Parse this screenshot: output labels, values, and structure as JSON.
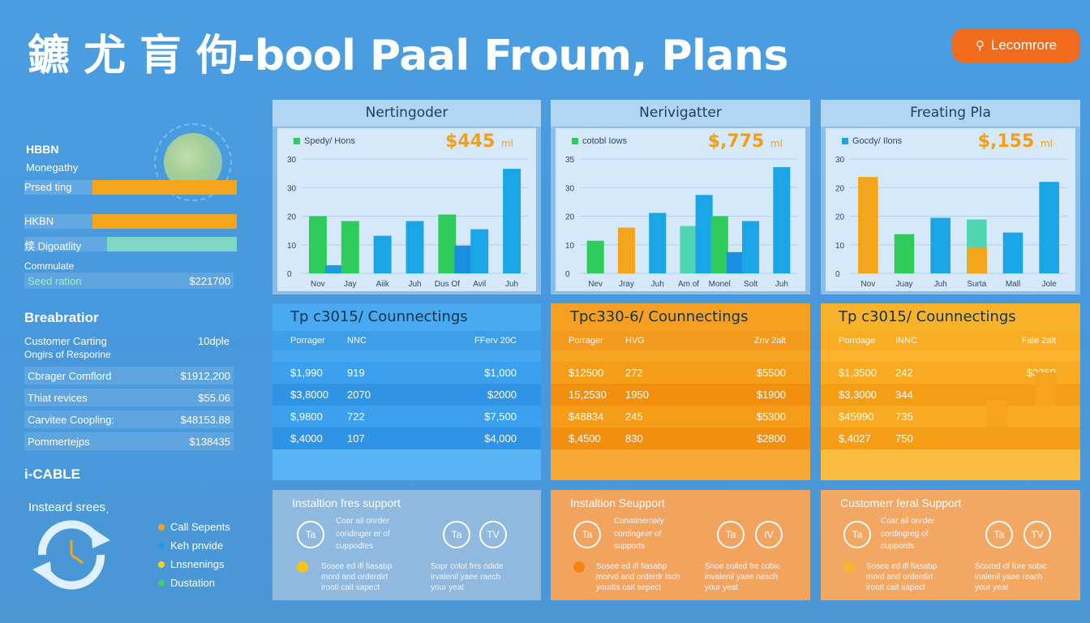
{
  "header": {
    "title": "鑣 尤 肓 佝-bool Paal Froum, Plans",
    "learn_button": "Lecomrore"
  },
  "sidebar": {
    "heading": "HBBN",
    "sub": "Monegathy",
    "bars": [
      {
        "label": "Prsed ting",
        "fill": 0.7,
        "color": "#f5a51b"
      },
      {
        "label": "HKBN",
        "fill": 0.7,
        "color": "#f5a51b"
      },
      {
        "label": "㷜 Digoatlity",
        "fill": 0.7,
        "color": "#7fd8c6"
      }
    ],
    "commulate_label": "Commulate",
    "seed_label": "Seed ration",
    "seed_value": "$221700",
    "section_title": "Breabratior",
    "customer_label": "Customer Carting",
    "customer_sub": "Ongirs of Resporine",
    "customer_value": "10dple",
    "rows": [
      {
        "label": "Cbrager Comflord",
        "value": "$1912,200"
      },
      {
        "label": "Thiat revices",
        "value": "$55.06"
      },
      {
        "label": "Carvitee Coopling:",
        "value": "$48153.88"
      },
      {
        "label": "Pommertejps",
        "value": "$138435"
      }
    ],
    "cable_title": "i-CABLE",
    "instead_title": "Insteard sreesˌ",
    "legend": [
      {
        "label": "Call Sepents",
        "color": "#f5a51b"
      },
      {
        "label": "Keh pnvide",
        "color": "#1e9be8"
      },
      {
        "label": "Lnsnenings",
        "color": "#f7d21b"
      },
      {
        "label": "Dustation",
        "color": "#3ccf6a"
      }
    ]
  },
  "charts": [
    {
      "title": "Nertingoder",
      "legend": "Spedy/ Hons",
      "legend_color": "#2ecc5a",
      "price": "$445",
      "price_unit": "ml",
      "yticks": [
        "0",
        "10",
        "20",
        "30",
        "30"
      ],
      "xlabels": [
        "Nov",
        "Jay",
        "Aiik",
        "Juh",
        "Dus Of",
        "Avil",
        "Juh"
      ],
      "bars": [
        {
          "x": 0,
          "v": 17.5,
          "c": "#2ecc5a"
        },
        {
          "x": 0.5,
          "v": 2.5,
          "c": "#1a9be0"
        },
        {
          "x": 1,
          "v": 16,
          "c": "#2ecc5a"
        },
        {
          "x": 2,
          "v": 11.5,
          "c": "#1aa6e6"
        },
        {
          "x": 3,
          "v": 16,
          "c": "#1aa6e6"
        },
        {
          "x": 4,
          "v": 18,
          "c": "#2ecc5a"
        },
        {
          "x": 4.5,
          "v": 8.5,
          "c": "#1a8fe0"
        },
        {
          "x": 5,
          "v": 13.5,
          "c": "#1aa6e6"
        },
        {
          "x": 6,
          "v": 32,
          "c": "#1aa6e6"
        }
      ]
    },
    {
      "title": "Nerivigatter",
      "legend": "cotobl Iows",
      "legend_color": "#2ecc5a",
      "price": "$,775",
      "price_unit": "ml",
      "yticks": [
        "0",
        "10",
        "20",
        "30",
        "35"
      ],
      "xlabels": [
        "Nev",
        "Jray",
        "Juh",
        "Am of",
        "Monel",
        "Solt",
        "Juh"
      ],
      "bars": [
        {
          "x": 0,
          "v": 10,
          "c": "#2ecc5a"
        },
        {
          "x": 1,
          "v": 14,
          "c": "#f5a51b"
        },
        {
          "x": 2,
          "v": 18.5,
          "c": "#1aa6e6"
        },
        {
          "x": 3,
          "v": 14.5,
          "c": "#4fd5b0"
        },
        {
          "x": 3.5,
          "v": 24,
          "c": "#1aa6e6"
        },
        {
          "x": 4,
          "v": 17.5,
          "c": "#2ecc5a"
        },
        {
          "x": 4.5,
          "v": 6.5,
          "c": "#1a8fe0"
        },
        {
          "x": 5,
          "v": 16,
          "c": "#1aa6e6"
        },
        {
          "x": 6,
          "v": 32.5,
          "c": "#1aa6e6"
        }
      ]
    },
    {
      "title": "Freating Pla",
      "legend": "Gocdy/ Ilons",
      "legend_color": "#1aa6e6",
      "price": "$,155",
      "price_unit": "ml",
      "yticks": [
        "0",
        "10",
        "20",
        "20",
        "30"
      ],
      "xlabels": [
        "Nov",
        "Juay",
        "Juh",
        "Surta",
        "Mall",
        "Jole"
      ],
      "bars": [
        {
          "x": 0,
          "v": 29.5,
          "c": "#f5a51b"
        },
        {
          "x": 1,
          "v": 12,
          "c": "#2ecc5a"
        },
        {
          "x": 2,
          "v": 17,
          "c": "#1aa6e6"
        },
        {
          "x": 3,
          "v": 16.5,
          "c": "#4fd5b0"
        },
        {
          "x": 3.01,
          "v": 8,
          "c": "#f5a51b"
        },
        {
          "x": 4,
          "v": 12.5,
          "c": "#1aa6e6"
        },
        {
          "x": 5,
          "v": 28,
          "c": "#1aa6e6"
        }
      ]
    }
  ],
  "tables": [
    {
      "title": "Tp c3015/ Counnectings",
      "cols": [
        "Porrager",
        "NNC",
        "FFerv 20C"
      ],
      "rows": [
        [
          "$1,990",
          "919",
          "$1,000"
        ],
        [
          "$3,8000",
          "2070",
          "$2000"
        ],
        [
          "$,9800",
          "722",
          "$7,500"
        ],
        [
          "$,4000",
          "107",
          "$4,000"
        ]
      ],
      "bg": "#46a8ee",
      "hdr": "#3e9fe8",
      "row_a": "#3ba0ee",
      "row_b": "#2f93e6"
    },
    {
      "title": "Tpc330-6/ Counnectings",
      "cols": [
        "Porrager",
        "HVG",
        "Znv 2alt"
      ],
      "rows": [
        [
          "$12500",
          "272",
          "$5500"
        ],
        [
          "15,2530",
          "1950",
          "$1900"
        ],
        [
          "$48834",
          "245",
          "$5300"
        ],
        [
          "$,4500",
          "830",
          "$2800"
        ]
      ],
      "bg": "#f6a227",
      "hdr": "#f39a1e",
      "row_a": "#f59c18",
      "row_b": "#f38f0f"
    },
    {
      "title": "Tp c3015/ Counnectings",
      "cols": [
        "Porrdage",
        "INNC",
        "Fale 2alt"
      ],
      "rows": [
        [
          "$1,3500",
          "242",
          "$3350"
        ],
        [
          "$3,3000",
          "344",
          "$"
        ],
        [
          "$45990",
          "735",
          ""
        ],
        [
          "$,4027",
          "750",
          ""
        ]
      ],
      "bg": "#fbb834",
      "hdr": "#f8ad24",
      "row_a": "#f7aa22",
      "row_b": "#f59e15"
    }
  ],
  "support": [
    {
      "title": "Instaltion fres support",
      "bg": "#8fb9de",
      "dot": "#f5c418",
      "line1": "Coar ail onrder",
      "line2": "coridinger er of",
      "line3": "cuppodtes",
      "badges": [
        "Ta",
        "Ta",
        "TV"
      ],
      "foot_a": [
        "Sosee ed ifl fiasabp",
        "mord and orderdirt",
        "irooti cait sapect"
      ],
      "foot_b": [
        "Sopr colot frrs odide",
        "irvalenil yaee raech",
        "your yeat"
      ]
    },
    {
      "title": "Instaltion Seupport",
      "bg": "#f2a35e",
      "dot": "#f58412",
      "line1": "Conatinernaly",
      "line2": "cordingeer of",
      "line3": "supports",
      "badges": [
        "Ta",
        "Ta",
        "IV"
      ],
      "foot_a": [
        "Sosee ed ifl fiasabp",
        "morvd and orderdr tsch",
        "youdts cait sepect"
      ],
      "foot_b": [
        "Snoe coiled fre cobic",
        "invalenil yaee nesch",
        "your yeat"
      ]
    },
    {
      "title": "Customerr feral Support",
      "bg": "#f2a762",
      "dot": "#f5b62e",
      "line1": "Coar ail onrder",
      "line2": "cordingreg of",
      "line3": "cuppords",
      "badges": [
        "Ta",
        "Ta",
        "TV"
      ],
      "foot_a": [
        "Sosee ed ifl fiasabp",
        "mord and orderdirt",
        "iroott cait sapect"
      ],
      "foot_b": [
        "Scorod of fore sobic",
        "inalenil yaee reach",
        "your yeat"
      ]
    }
  ]
}
